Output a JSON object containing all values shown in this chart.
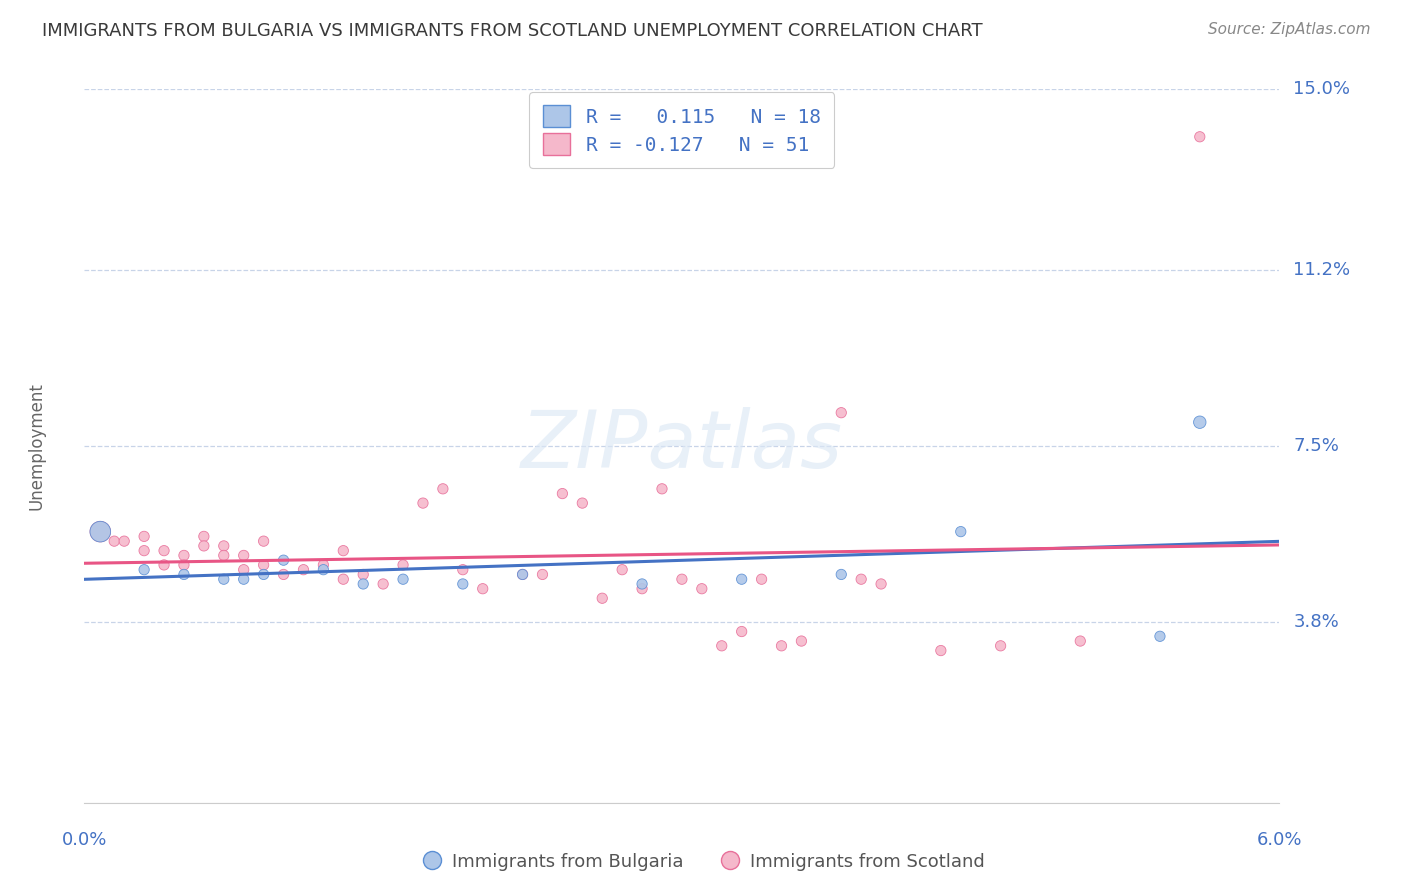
{
  "title": "IMMIGRANTS FROM BULGARIA VS IMMIGRANTS FROM SCOTLAND UNEMPLOYMENT CORRELATION CHART",
  "source": "Source: ZipAtlas.com",
  "ylabel": "Unemployment",
  "x_min": 0.0,
  "x_max": 0.06,
  "y_min": 0.0,
  "y_max": 0.15,
  "y_ticks": [
    0.038,
    0.075,
    0.112,
    0.15
  ],
  "y_tick_labels": [
    "3.8%",
    "7.5%",
    "11.2%",
    "15.0%"
  ],
  "x_tick_labels_bottom": [
    "0.0%",
    "6.0%"
  ],
  "x_tick_pos_bottom": [
    0.0,
    0.06
  ],
  "bulgaria_color": "#adc6e8",
  "scotland_color": "#f5b8cb",
  "bulgaria_edge_color": "#5b8fd4",
  "scotland_edge_color": "#e8709a",
  "bulgaria_line_color": "#4472c4",
  "scotland_line_color": "#e85585",
  "title_color": "#3a3a3a",
  "axis_tick_color": "#4472c4",
  "source_color": "#888888",
  "R_bulgaria": 0.115,
  "N_bulgaria": 18,
  "R_scotland": -0.127,
  "N_scotland": 51,
  "background_color": "#ffffff",
  "grid_color": "#c8d4e8",
  "legend_label_bulgaria": "Immigrants from Bulgaria",
  "legend_label_scotland": "Immigrants from Scotland",
  "watermark": "ZIPatlas",
  "bulgaria_x": [
    0.0008,
    0.003,
    0.005,
    0.007,
    0.008,
    0.009,
    0.01,
    0.012,
    0.014,
    0.016,
    0.019,
    0.022,
    0.028,
    0.033,
    0.038,
    0.044,
    0.054,
    0.056
  ],
  "bulgaria_y": [
    0.057,
    0.049,
    0.048,
    0.047,
    0.047,
    0.048,
    0.051,
    0.049,
    0.046,
    0.047,
    0.046,
    0.048,
    0.046,
    0.047,
    0.048,
    0.057,
    0.035,
    0.08
  ],
  "bulgaria_size": [
    220,
    55,
    55,
    55,
    55,
    55,
    55,
    55,
    55,
    55,
    55,
    55,
    55,
    55,
    55,
    55,
    55,
    80
  ],
  "scotland_x": [
    0.0008,
    0.0015,
    0.002,
    0.003,
    0.003,
    0.004,
    0.004,
    0.005,
    0.005,
    0.006,
    0.006,
    0.007,
    0.007,
    0.008,
    0.008,
    0.009,
    0.009,
    0.01,
    0.011,
    0.012,
    0.013,
    0.013,
    0.014,
    0.015,
    0.016,
    0.017,
    0.018,
    0.019,
    0.02,
    0.022,
    0.023,
    0.024,
    0.025,
    0.026,
    0.027,
    0.028,
    0.029,
    0.03,
    0.031,
    0.032,
    0.033,
    0.034,
    0.035,
    0.036,
    0.038,
    0.039,
    0.04,
    0.043,
    0.046,
    0.05,
    0.056
  ],
  "scotland_y": [
    0.057,
    0.055,
    0.055,
    0.056,
    0.053,
    0.053,
    0.05,
    0.052,
    0.05,
    0.056,
    0.054,
    0.054,
    0.052,
    0.049,
    0.052,
    0.055,
    0.05,
    0.048,
    0.049,
    0.05,
    0.053,
    0.047,
    0.048,
    0.046,
    0.05,
    0.063,
    0.066,
    0.049,
    0.045,
    0.048,
    0.048,
    0.065,
    0.063,
    0.043,
    0.049,
    0.045,
    0.066,
    0.047,
    0.045,
    0.033,
    0.036,
    0.047,
    0.033,
    0.034,
    0.082,
    0.047,
    0.046,
    0.032,
    0.033,
    0.034,
    0.14
  ],
  "scotland_size": [
    220,
    55,
    55,
    55,
    55,
    55,
    55,
    55,
    55,
    55,
    55,
    55,
    55,
    55,
    55,
    55,
    55,
    55,
    55,
    55,
    55,
    55,
    55,
    55,
    55,
    55,
    55,
    55,
    55,
    55,
    55,
    55,
    55,
    55,
    55,
    55,
    55,
    55,
    55,
    55,
    55,
    55,
    55,
    55,
    55,
    55,
    55,
    55,
    55,
    55,
    55
  ]
}
